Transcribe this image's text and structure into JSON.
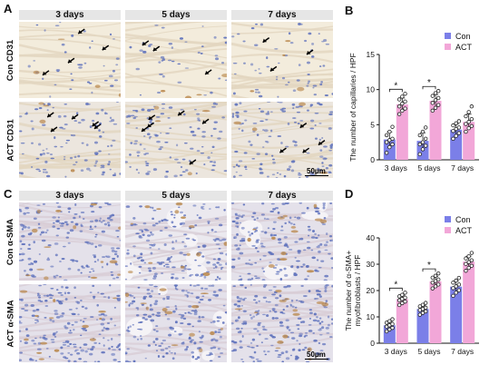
{
  "panels": {
    "A": "A",
    "B": "B",
    "C": "C",
    "D": "D"
  },
  "columns": [
    "3 days",
    "5 days",
    "7 days"
  ],
  "rows_top": [
    "Con",
    "ACT"
  ],
  "rows_top_marker": "CD31",
  "rows_bottom": [
    "Con",
    "ACT"
  ],
  "rows_bottom_marker": "α-SMA",
  "scale_bar_label": "50μm",
  "legend": {
    "con": "Con",
    "act": "ACT"
  },
  "colors": {
    "con": "#7b7fe8",
    "act": "#f2a7d8",
    "tissue": "#f2ead9",
    "nuclei": "#5b6fb8",
    "stain": "#b8864a"
  },
  "chart_data": [
    {
      "type": "bar",
      "panel": "B",
      "title": "",
      "ylabel": "The number of capillaries / HPF",
      "xlabel": "",
      "categories": [
        "3 days",
        "5 days",
        "7 days"
      ],
      "ylim": [
        0,
        15
      ],
      "yticks": [
        0,
        5,
        10,
        15
      ],
      "series": [
        {
          "name": "Con",
          "values": [
            2.9,
            2.7,
            4.3
          ],
          "points": [
            [
              1.0,
              1.8,
              2.2,
              2.5,
              2.8,
              3.0,
              3.5,
              4.0,
              4.7
            ],
            [
              0.8,
              1.5,
              2.0,
              2.2,
              2.5,
              3.0,
              3.5,
              4.0,
              4.6
            ],
            [
              3.0,
              3.4,
              3.8,
              4.1,
              4.4,
              4.6,
              4.9,
              5.2,
              5.5
            ]
          ]
        },
        {
          "name": "ACT",
          "values": [
            7.9,
            8.4,
            5.4
          ],
          "points": [
            [
              6.5,
              7.0,
              7.3,
              7.6,
              8.0,
              8.3,
              8.6,
              9.0,
              9.4
            ],
            [
              7.0,
              7.4,
              7.8,
              8.1,
              8.5,
              8.8,
              9.1,
              9.5,
              9.8
            ],
            [
              4.0,
              4.5,
              4.8,
              5.1,
              5.4,
              5.8,
              6.2,
              6.8,
              7.6
            ]
          ]
        }
      ],
      "significance": [
        {
          "category": "3 days",
          "label": "*"
        },
        {
          "category": "5 days",
          "label": "*"
        }
      ]
    },
    {
      "type": "bar",
      "panel": "D",
      "title": "",
      "ylabel": "The number of α-SMA+ myofibroblasts / HPF",
      "xlabel": "",
      "categories": [
        "3 days",
        "5 days",
        "7 days"
      ],
      "ylim": [
        0,
        40
      ],
      "yticks": [
        0,
        10,
        20,
        30,
        40
      ],
      "series": [
        {
          "name": "Con",
          "values": [
            6.8,
            13.0,
            21.5
          ],
          "points": [
            [
              4.5,
              5.2,
              5.8,
              6.3,
              6.8,
              7.3,
              7.8,
              8.4,
              9.1
            ],
            [
              10.8,
              11.5,
              12.1,
              12.6,
              13.0,
              13.5,
              14.0,
              14.6,
              15.3
            ],
            [
              18.0,
              19.2,
              20.1,
              20.9,
              21.6,
              22.3,
              23.0,
              23.8,
              24.8
            ]
          ]
        },
        {
          "name": "ACT",
          "values": [
            16.8,
            23.5,
            31.0
          ],
          "points": [
            [
              14.5,
              15.2,
              15.8,
              16.3,
              16.8,
              17.3,
              17.8,
              18.4,
              19.2
            ],
            [
              20.8,
              21.6,
              22.3,
              23.0,
              23.6,
              24.2,
              24.9,
              25.6,
              26.5
            ],
            [
              27.5,
              28.6,
              29.4,
              30.1,
              30.8,
              31.5,
              32.2,
              33.0,
              34.3
            ]
          ]
        }
      ],
      "significance": [
        {
          "category": "3 days",
          "label": "*"
        },
        {
          "category": "5 days",
          "label": "*"
        }
      ]
    }
  ]
}
